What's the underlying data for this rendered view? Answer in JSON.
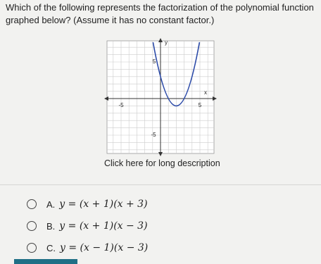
{
  "question": "Which of the following represents the factorization of the polynomial function graphed below? (Assume it has no constant factor.)",
  "graph": {
    "x_label": "x",
    "y_label": "y",
    "x_ticks": [
      "-5",
      "5"
    ],
    "y_ticks": [
      "5",
      "-5"
    ]
  },
  "link": "Click here for long description",
  "options": [
    {
      "letter": "A.",
      "text": "y = (x + 1)(x + 3)"
    },
    {
      "letter": "B.",
      "text": "y = (x + 1)(x − 3)"
    },
    {
      "letter": "C.",
      "text": "y = (x − 1)(x − 3)"
    }
  ]
}
